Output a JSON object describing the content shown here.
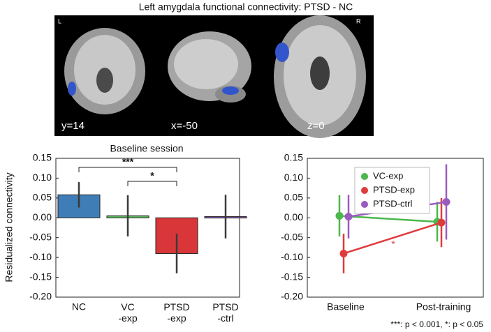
{
  "header": {
    "title": "Left amygdala functional connectivity: PTSD - NC",
    "left_marker": "L",
    "right_marker": "R",
    "slices": [
      "y=14",
      "x=-50",
      "z=0"
    ]
  },
  "chart_data": [
    {
      "type": "bar",
      "title": "Baseline session",
      "ylabel": "Residualized connectivity",
      "categories": [
        "NC",
        "VC\n-exp",
        "PTSD\n-exp",
        "PTSD\n-ctrl"
      ],
      "values": [
        0.058,
        0.005,
        -0.09,
        0.003
      ],
      "errors": [
        0.032,
        0.052,
        0.05,
        0.055
      ],
      "colors": [
        "#3f7db6",
        "#5cb85c",
        "#d9363a",
        "#8e5ab5"
      ],
      "error_color": "#3a3a3a",
      "annotations": [
        "***",
        "*"
      ],
      "ylim": [
        -0.2,
        0.15
      ],
      "yticks": [
        {
          "value": -0.2,
          "label": "-0.20"
        },
        -0.15,
        {
          "value": -0.1,
          "label": "-0.10"
        },
        -0.05,
        {
          "value": 0,
          "label": "0.00"
        },
        0.05,
        {
          "value": 0.1,
          "label": "0.10"
        },
        0.15
      ]
    },
    {
      "type": "line",
      "categories": [
        "Baseline",
        "Post-training"
      ],
      "series": [
        {
          "name": "VC-exp",
          "color": "#4cb74c",
          "values": [
            0.005,
            -0.01
          ],
          "errors": [
            0.052,
            0.05
          ]
        },
        {
          "name": "PTSD-exp",
          "color": "#e03b3b",
          "values": [
            -0.09,
            -0.012
          ],
          "errors": [
            0.05,
            0.062
          ]
        },
        {
          "name": "PTSD-ctrl",
          "color": "#9a5bc0",
          "values": [
            0.003,
            0.04
          ],
          "errors": [
            0.055,
            0.095
          ]
        }
      ],
      "annotation": "*",
      "annotation_color": "#e03b3b",
      "legend": "upper left",
      "footnote": "***: p < 0.001, *: p < 0.05",
      "ylim": [
        -0.2,
        0.15
      ],
      "yticks": [
        {
          "value": -0.2,
          "label": "-0.20"
        },
        -0.15,
        {
          "value": -0.1,
          "label": "-0.10"
        },
        -0.05,
        {
          "value": 0,
          "label": "0.00"
        },
        0.05,
        {
          "value": 0.1,
          "label": "0.10"
        },
        0.15
      ]
    }
  ]
}
